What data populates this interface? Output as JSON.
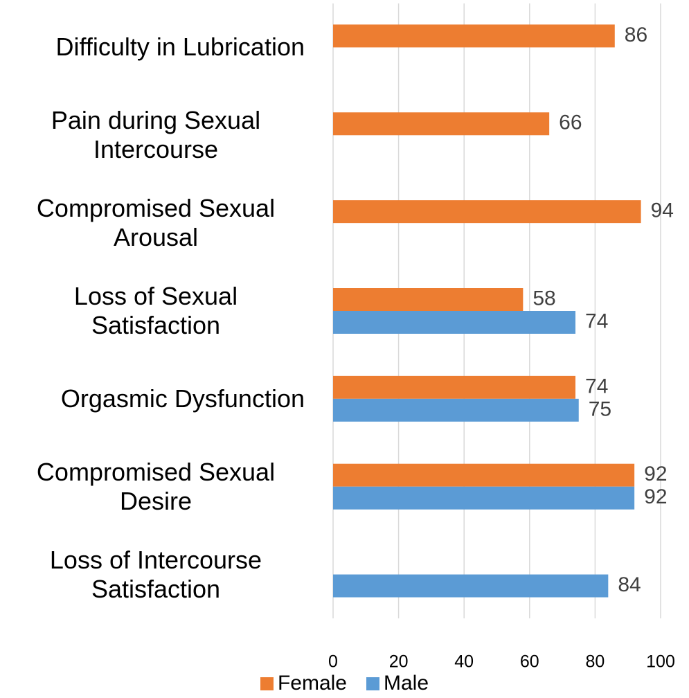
{
  "chart_data": {
    "type": "bar",
    "orientation": "horizontal",
    "categories": [
      "Difficulty in Lubrication",
      "Pain during Sexual Intercourse",
      "Compromised Sexual Arousal",
      "Loss of Sexual Satisfaction",
      "Orgasmic Dysfunction",
      "Compromised Sexual Desire",
      "Loss of Intercourse Satisfaction"
    ],
    "series": [
      {
        "name": "Female",
        "color": "#ED7D31",
        "values": [
          86,
          66,
          94,
          58,
          74,
          92,
          null
        ]
      },
      {
        "name": "Male",
        "color": "#5B9BD5",
        "values": [
          null,
          null,
          null,
          74,
          75,
          92,
          84
        ]
      }
    ],
    "xlim": [
      0,
      100
    ],
    "xticks": [
      0,
      20,
      40,
      60,
      80,
      100
    ],
    "grid": true,
    "legend": "bottom"
  }
}
